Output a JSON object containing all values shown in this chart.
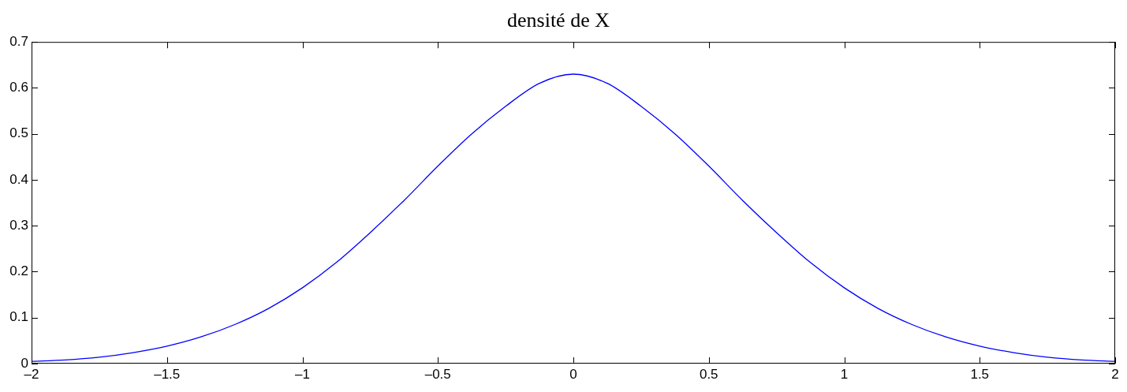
{
  "chart_data": {
    "type": "line",
    "title": "densité de X",
    "x": [
      -2,
      -1.875,
      -1.75,
      -1.625,
      -1.5,
      -1.375,
      -1.25,
      -1.125,
      -1,
      -0.875,
      -0.75,
      -0.625,
      -0.5,
      -0.375,
      -0.25,
      -0.125,
      0,
      0.125,
      0.25,
      0.375,
      0.5,
      0.625,
      0.75,
      0.875,
      1,
      1.125,
      1.25,
      1.375,
      1.5,
      1.625,
      1.75,
      1.875,
      2
    ],
    "series": [
      {
        "color": "#0000ff",
        "values": [
          0.005,
          0.008,
          0.014,
          0.024,
          0.038,
          0.058,
          0.085,
          0.12,
          0.165,
          0.22,
          0.285,
          0.355,
          0.43,
          0.5,
          0.56,
          0.61,
          0.63,
          0.61,
          0.56,
          0.5,
          0.43,
          0.355,
          0.285,
          0.22,
          0.165,
          0.12,
          0.085,
          0.058,
          0.038,
          0.024,
          0.014,
          0.008,
          0.005
        ]
      }
    ],
    "xlim": [
      -2,
      2
    ],
    "xticks": [
      {
        "value": -2,
        "label": "–2"
      },
      {
        "value": -1.5,
        "label": "–1.5"
      },
      {
        "value": -1,
        "label": "–1"
      },
      {
        "value": -0.5,
        "label": "–0.5"
      },
      0,
      0.5,
      1,
      1.5,
      2
    ],
    "ylim": [
      0,
      0.7
    ],
    "yticks": [
      0,
      0.1,
      0.2,
      0.3,
      0.4,
      0.5,
      0.6,
      0.7
    ],
    "grid": false,
    "legend": false,
    "marker": "none",
    "line_style": "solid"
  }
}
